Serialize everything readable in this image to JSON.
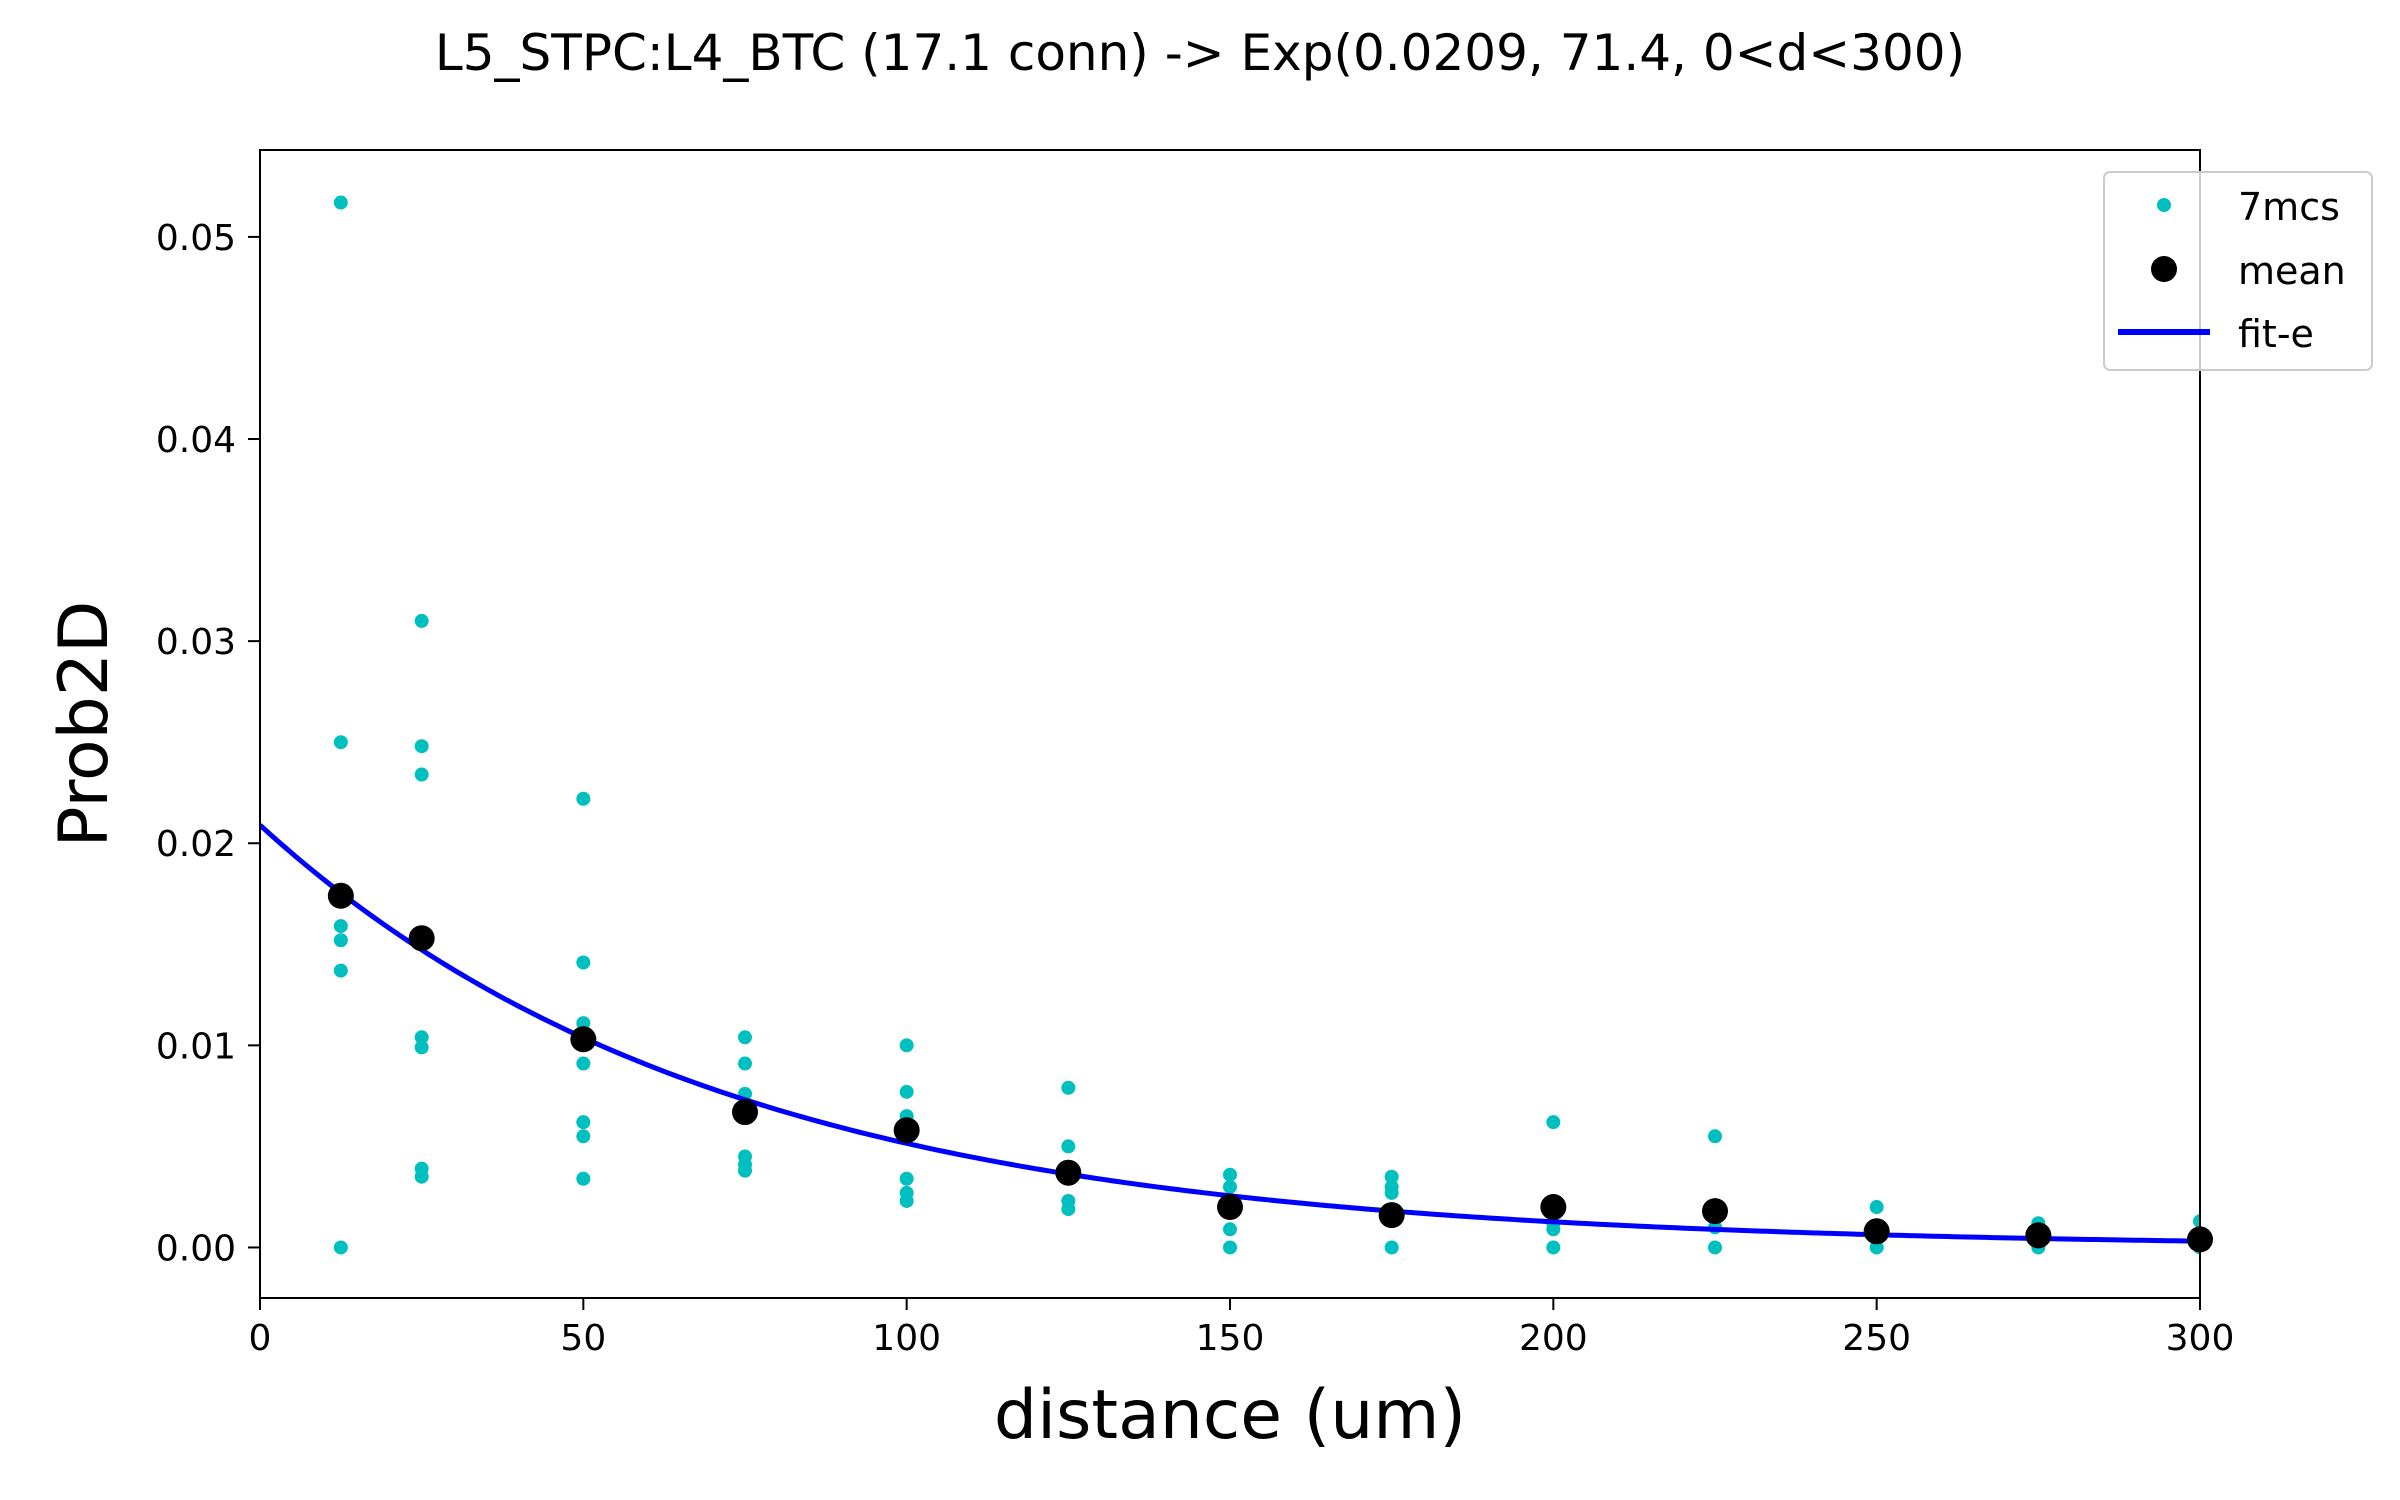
{
  "chart_data": {
    "type": "scatter",
    "title": "L5_STPC:L4_BTC (17.1 conn) -> Exp(0.0209, 71.4, 0<d<300)",
    "xlabel": "distance (um)",
    "ylabel": "Prob2D",
    "xlim": [
      0,
      300
    ],
    "ylim": [
      -0.0025,
      0.0543
    ],
    "xticks": [
      0,
      50,
      100,
      150,
      200,
      250,
      300
    ],
    "xtick_labels": [
      "0",
      "50",
      "100",
      "150",
      "200",
      "250",
      "300"
    ],
    "yticks": [
      0,
      0.01,
      0.02,
      0.03,
      0.04,
      0.05
    ],
    "ytick_labels": [
      "0.00",
      "0.01",
      "0.02",
      "0.03",
      "0.04",
      "0.05"
    ],
    "grid": false,
    "legend_position": "top-right",
    "legend": [
      {
        "label": "7mcs",
        "marker": "small-dot",
        "color": "#00bfbf"
      },
      {
        "label": "mean",
        "marker": "large-dot",
        "color": "#000000"
      },
      {
        "label": "fit-e",
        "marker": "line",
        "color": "#0000ff"
      }
    ],
    "series": [
      {
        "name": "7mcs",
        "kind": "scatter",
        "color": "#00bfbf",
        "points": [
          [
            12.5,
            0.0517
          ],
          [
            12.5,
            0.025
          ],
          [
            12.5,
            0.0159
          ],
          [
            12.5,
            0.0152
          ],
          [
            12.5,
            0.0137
          ],
          [
            12.5,
            0.0
          ],
          [
            25,
            0.031
          ],
          [
            25,
            0.0248
          ],
          [
            25,
            0.0234
          ],
          [
            25,
            0.0104
          ],
          [
            25,
            0.0099
          ],
          [
            25,
            0.0039
          ],
          [
            25,
            0.0035
          ],
          [
            50,
            0.0222
          ],
          [
            50,
            0.0141
          ],
          [
            50,
            0.0111
          ],
          [
            50,
            0.0091
          ],
          [
            50,
            0.0062
          ],
          [
            50,
            0.0055
          ],
          [
            50,
            0.0034
          ],
          [
            75,
            0.0104
          ],
          [
            75,
            0.0091
          ],
          [
            75,
            0.0076
          ],
          [
            75,
            0.0045
          ],
          [
            75,
            0.0041
          ],
          [
            75,
            0.0038
          ],
          [
            100,
            0.01
          ],
          [
            100,
            0.0077
          ],
          [
            100,
            0.0065
          ],
          [
            100,
            0.0034
          ],
          [
            100,
            0.0027
          ],
          [
            100,
            0.0023
          ],
          [
            125,
            0.0079
          ],
          [
            125,
            0.005
          ],
          [
            125,
            0.0038
          ],
          [
            125,
            0.0023
          ],
          [
            125,
            0.0019
          ],
          [
            150,
            0.0036
          ],
          [
            150,
            0.003
          ],
          [
            150,
            0.0019
          ],
          [
            150,
            0.0009
          ],
          [
            150,
            0.0
          ],
          [
            175,
            0.0035
          ],
          [
            175,
            0.003
          ],
          [
            175,
            0.0027
          ],
          [
            175,
            0.0014
          ],
          [
            175,
            0.0
          ],
          [
            200,
            0.0062
          ],
          [
            200,
            0.0022
          ],
          [
            200,
            0.0012
          ],
          [
            200,
            0.0009
          ],
          [
            200,
            0.0
          ],
          [
            225,
            0.0055
          ],
          [
            225,
            0.0018
          ],
          [
            225,
            0.001
          ],
          [
            225,
            0.0
          ],
          [
            250,
            0.002
          ],
          [
            250,
            0.0009
          ],
          [
            250,
            0.0004
          ],
          [
            250,
            0.0
          ],
          [
            275,
            0.0012
          ],
          [
            275,
            0.0008
          ],
          [
            275,
            0.0004
          ],
          [
            275,
            0.0
          ],
          [
            300,
            0.0013
          ],
          [
            300,
            0.0005
          ],
          [
            300,
            0.0
          ]
        ]
      },
      {
        "name": "mean",
        "kind": "scatter",
        "color": "#000000",
        "points": [
          [
            12.5,
            0.0174
          ],
          [
            25,
            0.0153
          ],
          [
            50,
            0.0103
          ],
          [
            75,
            0.0067
          ],
          [
            100,
            0.0058
          ],
          [
            125,
            0.0037
          ],
          [
            150,
            0.002
          ],
          [
            175,
            0.0016
          ],
          [
            200,
            0.002
          ],
          [
            225,
            0.0018
          ],
          [
            250,
            0.0008
          ],
          [
            275,
            0.0006
          ],
          [
            300,
            0.0004
          ]
        ]
      },
      {
        "name": "fit-e",
        "kind": "line",
        "color": "#0000ff",
        "function": "exponential",
        "amplitude": 0.0209,
        "length_constant": 71.4
      }
    ]
  }
}
